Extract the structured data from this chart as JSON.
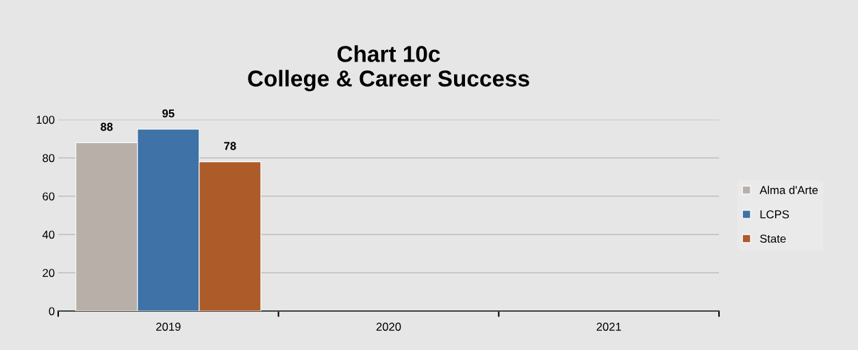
{
  "chart_data": {
    "type": "bar",
    "title": "Chart 10c\nCollege & Career Success",
    "categories": [
      "2019",
      "2020",
      "2021"
    ],
    "series": [
      {
        "name": "Alma d'Arte",
        "color": "#b8afa9",
        "values": [
          88,
          null,
          null
        ]
      },
      {
        "name": "LCPS",
        "color": "#3f72a6",
        "values": [
          95,
          null,
          null
        ]
      },
      {
        "name": "State",
        "color": "#ae5b2a",
        "values": [
          78,
          null,
          null
        ]
      }
    ],
    "ylim": [
      0,
      100
    ],
    "yticks": [
      0,
      20,
      40,
      60,
      80,
      100
    ],
    "grid": "y",
    "legend": "right",
    "data_labels": true
  }
}
